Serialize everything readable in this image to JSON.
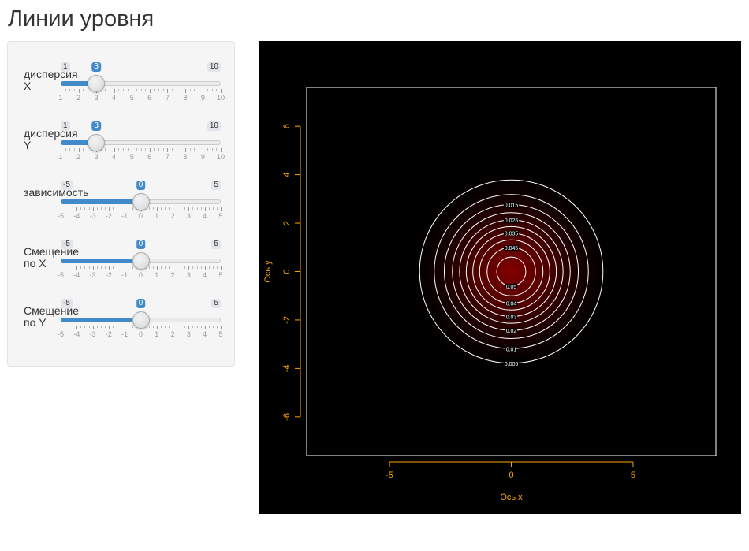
{
  "page": {
    "title": "Линии уровня"
  },
  "sliders": [
    {
      "id": "var-x",
      "label": "дисперсия X",
      "min": 1,
      "max": 10,
      "value": 3,
      "ticks": [
        "1",
        "2",
        "3",
        "4",
        "5",
        "6",
        "7",
        "8",
        "9",
        "10"
      ]
    },
    {
      "id": "var-y",
      "label": "дисперсия Y",
      "min": 1,
      "max": 10,
      "value": 3,
      "ticks": [
        "1",
        "2",
        "3",
        "4",
        "5",
        "6",
        "7",
        "8",
        "9",
        "10"
      ]
    },
    {
      "id": "dependence",
      "label": "зависимость",
      "min": -5,
      "max": 5,
      "value": 0,
      "ticks": [
        "-5",
        "-4",
        "-3",
        "-2",
        "-1",
        "0",
        "1",
        "2",
        "3",
        "4",
        "5"
      ]
    },
    {
      "id": "shift-x",
      "label": "Смещение по X",
      "min": -5,
      "max": 5,
      "value": 0,
      "ticks": [
        "-5",
        "-4",
        "-3",
        "-2",
        "-1",
        "0",
        "1",
        "2",
        "3",
        "4",
        "5"
      ]
    },
    {
      "id": "shift-y",
      "label": "Смещение по Y",
      "min": -5,
      "max": 5,
      "value": 0,
      "ticks": [
        "-5",
        "-4",
        "-3",
        "-2",
        "-1",
        "0",
        "1",
        "2",
        "3",
        "4",
        "5"
      ]
    }
  ],
  "colors": {
    "accent": "#428bca",
    "plot_background": "#000000",
    "axis_text": "#ffa500",
    "contour": "#ffffff",
    "density_peak": "#8b0000"
  },
  "chart_data": {
    "type": "contour",
    "xlabel": "Ось x",
    "ylabel": "Ось y",
    "xlim": [
      -8.4,
      8.4
    ],
    "ylim": [
      -7.6,
      7.6
    ],
    "x_ticks": [
      "-5",
      "0",
      "5"
    ],
    "y_ticks": [
      "6",
      "4",
      "2",
      "0",
      "-2",
      "-4",
      "-6"
    ],
    "x_tick_values": [
      -5,
      0,
      5
    ],
    "y_tick_values": [
      6,
      4,
      2,
      0,
      -2,
      -4,
      -6
    ],
    "distribution": {
      "mean_x": 0,
      "mean_y": 0,
      "var_x": 3,
      "var_y": 3,
      "cov": 0
    },
    "contour_levels": [
      {
        "level": 0.005,
        "label": "0.005",
        "label_side": "bottom"
      },
      {
        "level": 0.01,
        "label": "0.01",
        "label_side": "bottom"
      },
      {
        "level": 0.015,
        "label": "0.015",
        "label_side": "top"
      },
      {
        "level": 0.02,
        "label": "0.02",
        "label_side": "bottom"
      },
      {
        "level": 0.025,
        "label": "0.025",
        "label_side": "top"
      },
      {
        "level": 0.03,
        "label": "0.03",
        "label_side": "bottom"
      },
      {
        "level": 0.035,
        "label": "0.035",
        "label_side": "top"
      },
      {
        "level": 0.04,
        "label": "0.04",
        "label_side": "bottom"
      },
      {
        "level": 0.045,
        "label": "0.045",
        "label_side": "top"
      },
      {
        "level": 0.05,
        "label": "0.05",
        "label_side": "bottom"
      }
    ],
    "grid": false,
    "legend": "none"
  }
}
